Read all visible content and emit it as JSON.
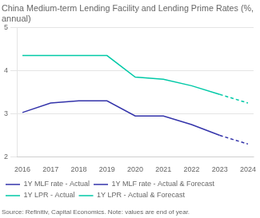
{
  "chart_data": {
    "type": "line",
    "title": "China Medium-term Lending Facility and Lending Prime Rates (%,\nannual)",
    "annotations": [
      "Source: Refinitiv, Capital Economics. Note: values are end of year."
    ],
    "xlim": [
      2015.8,
      2024.2
    ],
    "xticks": [
      2016,
      2017,
      2018,
      2019,
      2020,
      2021,
      2022,
      2023,
      2024
    ],
    "ylim": [
      2,
      5
    ],
    "yticks": [
      2,
      3,
      4,
      5
    ],
    "grid": "y",
    "legend": "bottom",
    "series": [
      {
        "name": "1Y MLF rate - Actual",
        "color": "#3333aa",
        "line_style": "solid",
        "x": [
          2016,
          2017,
          2018,
          2019,
          2020,
          2021,
          2022,
          2023
        ],
        "values": [
          3.03,
          3.25,
          3.3,
          3.3,
          2.95,
          2.95,
          2.75,
          2.5
        ]
      },
      {
        "name": "1Y MLF rate - Actual & Forecast",
        "color": "#3333aa",
        "line_style": "dashed",
        "x": [
          2023,
          2024
        ],
        "values": [
          2.5,
          2.3
        ]
      },
      {
        "name": "1Y LPR - Actual",
        "color": "#00c9a7",
        "line_style": "solid",
        "x": [
          2016,
          2017,
          2018,
          2019,
          2020,
          2021,
          2022,
          2023
        ],
        "values": [
          4.35,
          4.35,
          4.35,
          4.35,
          3.85,
          3.8,
          3.65,
          3.45
        ]
      },
      {
        "name": "1Y LPR - Actual & Forecast",
        "color": "#00c9a7",
        "line_style": "dashed",
        "x": [
          2023,
          2024
        ],
        "values": [
          3.45,
          3.25
        ]
      }
    ]
  }
}
